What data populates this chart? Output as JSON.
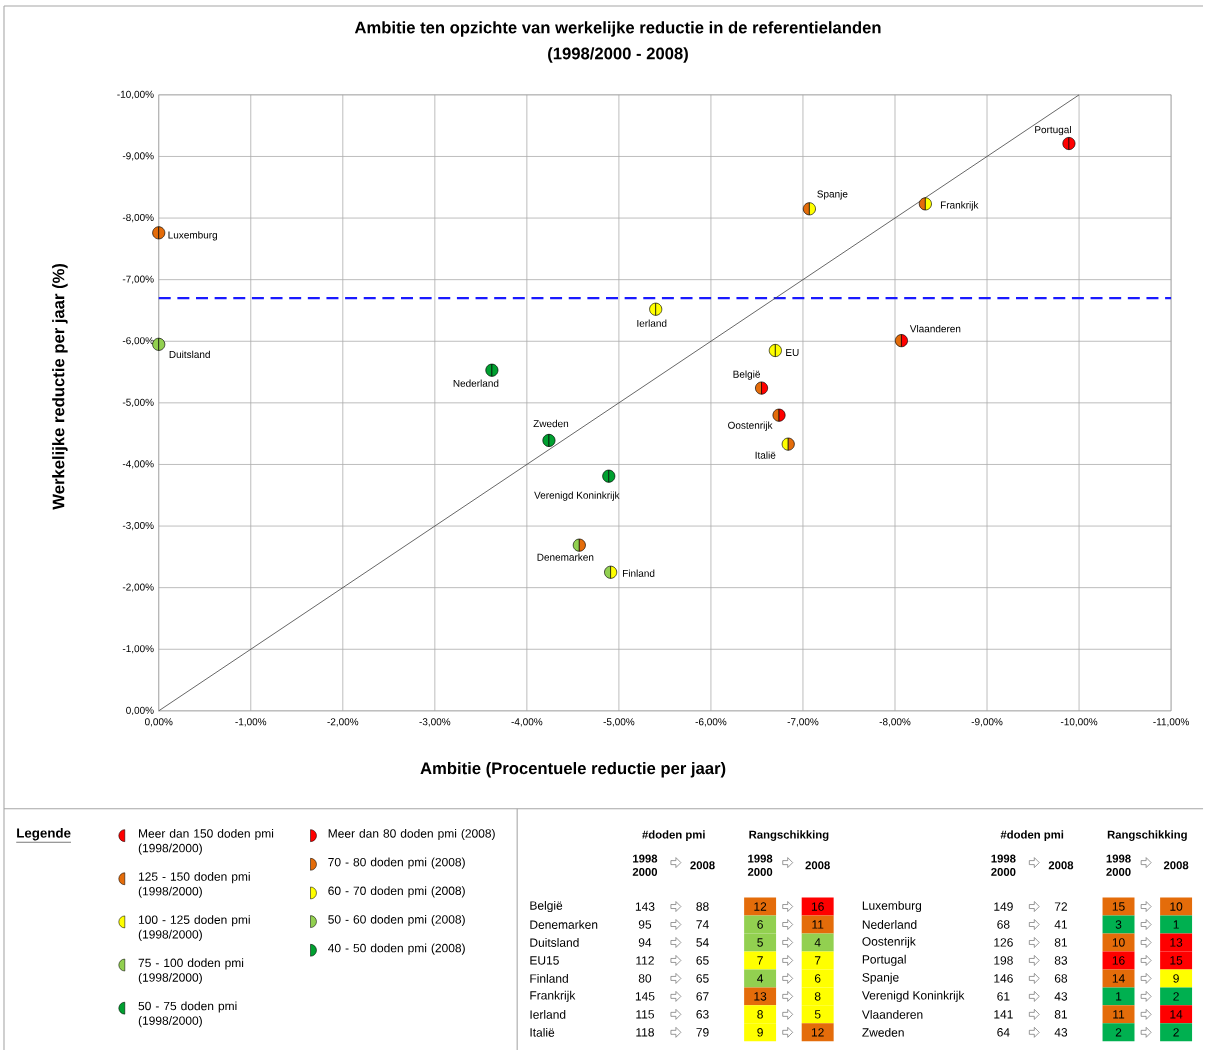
{
  "chart_data": [
    {
      "type": "scatter",
      "title": "Ambitie ten opzichte van werkelijke reductie in de referentielanden",
      "subtitle": "(1998/2000 - 2008)",
      "xlabel": "Ambitie (Procentuele reductie per jaar)",
      "ylabel": "Werkelijke reductie per jaar (%)",
      "x": [
        -9.89,
        -7.07,
        -8.33,
        0,
        -5.4,
        0,
        -8.07,
        -6.7,
        -3.62,
        -6.55,
        -6.74,
        -6.84,
        -4.24,
        -4.89,
        -4.57,
        -4.91
      ],
      "series": [
        {
          "type": "line",
          "color": "#404040",
          "marker": "none",
          "x": [
            0,
            -10
          ],
          "values": [
            0,
            -10
          ]
        },
        {
          "values": [
            -9.21,
            -8.15,
            -8.23,
            -7.76,
            -6.52,
            -5.95,
            -6.01,
            -5.85,
            -5.53,
            -5.24,
            -4.8,
            -4.33,
            -4.39,
            -3.81,
            -2.69,
            -2.25
          ],
          "colors": [
            "#ff0000",
            "#e46c0a",
            "#e46c0a",
            "#e46c0a",
            "#ffff00",
            "#92d050",
            "#e46c0a",
            "#ffff00",
            "#00a030",
            "#e46c0a",
            "#e46c0a",
            "#ffff00",
            "#00a030",
            "#00a030",
            "#92d050",
            "#92d050"
          ]
        },
        {
          "values": [
            -9.21,
            -8.15,
            -8.23,
            -7.76,
            -6.52,
            -5.95,
            -6.01,
            -5.85,
            -5.53,
            -5.24,
            -4.8,
            -4.33,
            -4.39,
            -3.81,
            -2.69,
            -2.25
          ],
          "colors": [
            "#ff0000",
            "#ffff00",
            "#ffff00",
            "#e46c0a",
            "#ffff00",
            "#92d050",
            "#ff0000",
            "#ffff00",
            "#00a030",
            "#ff0000",
            "#ff0000",
            "#e46c0a",
            "#00a030",
            "#00a030",
            "#e46c0a",
            "#ffff00"
          ]
        }
      ],
      "marker": "circle",
      "grid": true,
      "xlim": [
        0,
        -11
      ],
      "ylim": [
        0,
        -10
      ],
      "xticks": [
        {
          "value": 0,
          "label": "0,00%"
        },
        {
          "value": -1,
          "label": "-1,00%"
        },
        {
          "value": -2,
          "label": "-2,00%"
        },
        {
          "value": -3,
          "label": "-3,00%"
        },
        {
          "value": -4,
          "label": "-4,00%"
        },
        {
          "value": -5,
          "label": "-5,00%"
        },
        {
          "value": -6,
          "label": "-6,00%"
        },
        {
          "value": -7,
          "label": "-7,00%"
        },
        {
          "value": -8,
          "label": "-8,00%"
        },
        {
          "value": -9,
          "label": "-9,00%"
        },
        {
          "value": -10,
          "label": "-10,00%"
        },
        {
          "value": -11,
          "label": "-11,00%"
        }
      ],
      "yticks": [
        {
          "value": 0,
          "label": "0,00%"
        },
        {
          "value": -1,
          "label": "-1,00%"
        },
        {
          "value": -2,
          "label": "-2,00%"
        },
        {
          "value": -3,
          "label": "-3,00%"
        },
        {
          "value": -4,
          "label": "-4,00%"
        },
        {
          "value": -5,
          "label": "-5,00%"
        },
        {
          "value": -6,
          "label": "-6,00%"
        },
        {
          "value": -7,
          "label": "-7,00%"
        },
        {
          "value": -8,
          "label": "-8,00%"
        },
        {
          "value": -9,
          "label": "-9,00%"
        },
        {
          "value": -10,
          "label": "-10,00%"
        }
      ],
      "ref_lines": [
        {
          "axis": "y",
          "value": -6.7,
          "color": "#1a1aff",
          "line_style": "dashed"
        }
      ],
      "annotations": [
        {
          "text": "Portugal",
          "x": -9.89,
          "y": -9.21
        },
        {
          "text": "Spanje",
          "x": -7.07,
          "y": -8.15
        },
        {
          "text": "Frankrijk",
          "x": -8.33,
          "y": -8.23
        },
        {
          "text": "Luxemburg",
          "x": 0,
          "y": -7.76
        },
        {
          "text": "Ierland",
          "x": -5.4,
          "y": -6.52
        },
        {
          "text": "Duitsland",
          "x": 0,
          "y": -5.95
        },
        {
          "text": "Vlaanderen",
          "x": -8.07,
          "y": -6.01
        },
        {
          "text": "EU",
          "x": -6.7,
          "y": -5.85
        },
        {
          "text": "Nederland",
          "x": -3.62,
          "y": -5.53
        },
        {
          "text": "België",
          "x": -6.55,
          "y": -5.24
        },
        {
          "text": "Oostenrijk",
          "x": -6.74,
          "y": -4.8
        },
        {
          "text": "Italië",
          "x": -6.84,
          "y": -4.33
        },
        {
          "text": "Zweden",
          "x": -4.24,
          "y": -4.39
        },
        {
          "text": "Verenigd Koninkrijk",
          "x": -4.89,
          "y": -3.81
        },
        {
          "text": "Denemarken",
          "x": -4.57,
          "y": -2.69
        },
        {
          "text": "Finland",
          "x": -4.91,
          "y": -2.25
        }
      ]
    },
    {
      "type": "other",
      "title": "Legende",
      "annotations": [
        "Meer dan 150 doden pmi (1998/2000)",
        "125 - 150 doden pmi (1998/2000)",
        "100 - 125 doden pmi (1998/2000)",
        "75 - 100 doden pmi (1998/2000)",
        "50 - 75 doden pmi (1998/2000)",
        "Meer dan 80 doden pmi (2008)",
        "70 - 80 doden pmi (2008)",
        "60 - 70 doden pmi (2008)",
        "50 - 60 doden pmi (2008)",
        "40 - 50 doden pmi (2008)"
      ],
      "colors": [
        "#ff0000",
        "#e46c0a",
        "#ffff00",
        "#92d050",
        "#00a030",
        "#ff0000",
        "#e46c0a",
        "#ffff00",
        "#92d050",
        "#00a030"
      ]
    },
    {
      "type": "heatmap",
      "annotations": [
        "#doden pmi",
        "Rangschikking"
      ],
      "data_labels": true,
      "categories": [
        "1998 2000",
        "2008",
        "1998 2000",
        "2008"
      ],
      "y_categories": [
        "België",
        "Denemarken",
        "Duitsland",
        "EU15",
        "Finland",
        "Frankrijk",
        "Ierland",
        "Italië"
      ],
      "cells": [
        [
          143,
          88,
          12,
          16
        ],
        [
          95,
          74,
          6,
          11
        ],
        [
          94,
          54,
          5,
          4
        ],
        [
          112,
          65,
          7,
          7
        ],
        [
          80,
          65,
          4,
          6
        ],
        [
          145,
          67,
          13,
          8
        ],
        [
          115,
          63,
          8,
          5
        ],
        [
          118,
          79,
          9,
          12
        ]
      ],
      "colors": [
        [
          null,
          null,
          "#e46c0a",
          "#ff0000"
        ],
        [
          null,
          null,
          "#92d050",
          "#e46c0a"
        ],
        [
          null,
          null,
          "#92d050",
          "#92d050"
        ],
        [
          null,
          null,
          "#ffff00",
          "#ffff00"
        ],
        [
          null,
          null,
          "#92d050",
          "#ffff00"
        ],
        [
          null,
          null,
          "#e46c0a",
          "#ffff00"
        ],
        [
          null,
          null,
          "#ffff00",
          "#ffff00"
        ],
        [
          null,
          null,
          "#ffff00",
          "#e46c0a"
        ]
      ]
    },
    {
      "type": "heatmap",
      "annotations": [
        "#doden pmi",
        "Rangschikking"
      ],
      "data_labels": true,
      "categories": [
        "1998 2000",
        "2008",
        "1998 2000",
        "2008"
      ],
      "y_categories": [
        "Luxemburg",
        "Nederland",
        "Oostenrijk",
        "Portugal",
        "Spanje",
        "Verenigd Koninkrijk",
        "Vlaanderen",
        "Zweden"
      ],
      "cells": [
        [
          149,
          72,
          15,
          10
        ],
        [
          68,
          41,
          3,
          1
        ],
        [
          126,
          81,
          10,
          13
        ],
        [
          198,
          83,
          16,
          15
        ],
        [
          146,
          68,
          14,
          9
        ],
        [
          61,
          43,
          1,
          2
        ],
        [
          141,
          81,
          11,
          14
        ],
        [
          64,
          43,
          2,
          2
        ]
      ],
      "colors": [
        [
          null,
          null,
          "#e46c0a",
          "#e46c0a"
        ],
        [
          null,
          null,
          "#00b050",
          "#00b050"
        ],
        [
          null,
          null,
          "#e46c0a",
          "#ff0000"
        ],
        [
          null,
          null,
          "#ff0000",
          "#ff0000"
        ],
        [
          null,
          null,
          "#e46c0a",
          "#ffff00"
        ],
        [
          null,
          null,
          "#00b050",
          "#00b050"
        ],
        [
          null,
          null,
          "#e46c0a",
          "#ff0000"
        ],
        [
          null,
          null,
          "#00b050",
          "#00b050"
        ]
      ]
    }
  ]
}
